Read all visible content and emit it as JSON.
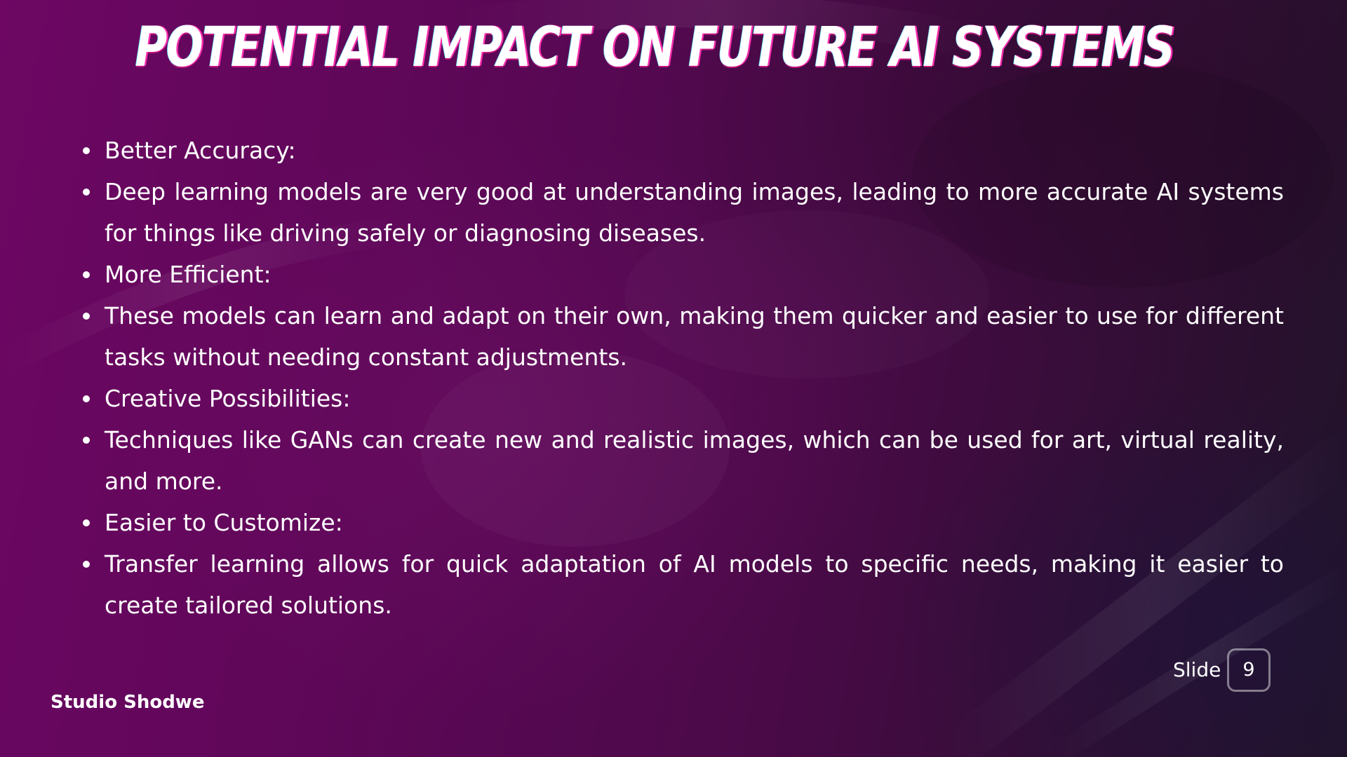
{
  "slide": {
    "title": "POTENTIAL IMPACT ON FUTURE AI SYSTEMS",
    "bullets": [
      "Better Accuracy:",
      "Deep learning models are very good at understanding images, leading to more accurate AI systems for things like driving safely or diagnosing diseases.",
      "More Efficient:",
      "These models can learn and adapt on their own, making them quicker and easier to use for different tasks without needing constant adjustments.",
      "Creative Possibilities:",
      "Techniques like GANs can create new and realistic images, which can be used for art, virtual reality, and more.",
      "Easier to Customize:",
      "Transfer learning allows for quick adaptation of AI models to specific needs, making it easier to create tailored solutions."
    ],
    "slide_label": "Slide",
    "slide_number": "9",
    "brand": "Studio Shodwe"
  },
  "colors": {
    "background_start": "#6d0763",
    "background_end": "#201428",
    "text": "#ffffff",
    "title_shadow": "#ff2fb0"
  }
}
